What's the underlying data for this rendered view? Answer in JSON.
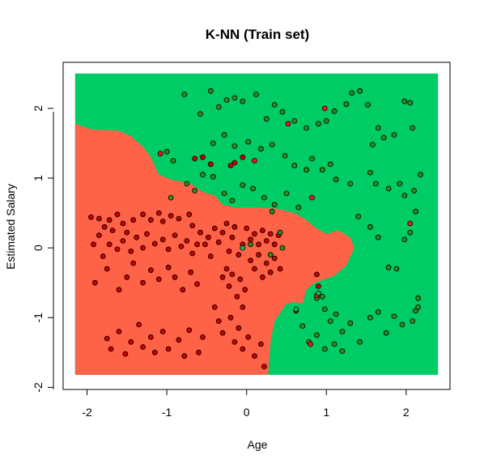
{
  "chart_data": {
    "type": "scatter",
    "title": "K-NN (Train set)",
    "xlabel": "Age",
    "ylabel": "Estimated Salary",
    "xlim": [
      -2.3,
      2.55
    ],
    "ylim": [
      -2.03,
      2.66
    ],
    "x_ticks": [
      "-2",
      "-1",
      "0",
      "1",
      "2"
    ],
    "y_ticks": [
      "-2",
      "-1",
      "0",
      "1",
      "2"
    ],
    "region_grid": {
      "xrange": [
        -2.15,
        2.4
      ],
      "yrange": [
        -1.82,
        2.5
      ]
    },
    "colors": {
      "region_0": "#FF6347",
      "region_1": "#00CC66",
      "point_0": "#CC0000",
      "point_1": "#2E8B1E",
      "point_0_alt": "#FF1020",
      "point_1_alt": "#00C050",
      "outline": "#000000"
    },
    "region_red": [
      [
        -2.15,
        -1.82
      ],
      [
        -2.15,
        1.78
      ],
      [
        -1.95,
        1.7
      ],
      [
        -1.6,
        1.68
      ],
      [
        -1.45,
        1.6
      ],
      [
        -1.3,
        1.45
      ],
      [
        -1.2,
        1.3
      ],
      [
        -1.1,
        1.05
      ],
      [
        -0.95,
        0.98
      ],
      [
        -0.7,
        0.92
      ],
      [
        -0.55,
        0.8
      ],
      [
        -0.4,
        0.75
      ],
      [
        -0.3,
        0.62
      ],
      [
        -0.15,
        0.58
      ],
      [
        0.1,
        0.58
      ],
      [
        0.4,
        0.56
      ],
      [
        0.6,
        0.5
      ],
      [
        0.75,
        0.4
      ],
      [
        0.85,
        0.3
      ],
      [
        1.0,
        0.2
      ],
      [
        1.15,
        0.25
      ],
      [
        1.3,
        0.15
      ],
      [
        1.35,
        0.0
      ],
      [
        1.25,
        -0.25
      ],
      [
        1.1,
        -0.4
      ],
      [
        0.85,
        -0.5
      ],
      [
        0.75,
        -0.6
      ],
      [
        0.7,
        -0.8
      ],
      [
        0.6,
        -0.78
      ],
      [
        0.5,
        -0.8
      ],
      [
        0.35,
        -1.05
      ],
      [
        0.3,
        -1.35
      ],
      [
        0.27,
        -1.82
      ]
    ],
    "points_class0": [
      [
        -1.95,
        0.44
      ],
      [
        -1.85,
        0.42
      ],
      [
        -1.78,
        0.3
      ],
      [
        -1.72,
        0.4
      ],
      [
        -1.68,
        0.25
      ],
      [
        -1.62,
        0.48
      ],
      [
        -1.55,
        0.35
      ],
      [
        -1.5,
        0.22
      ],
      [
        -1.42,
        0.4
      ],
      [
        -1.3,
        0.48
      ],
      [
        -1.2,
        0.4
      ],
      [
        -1.1,
        0.5
      ],
      [
        -1.05,
        0.38
      ],
      [
        -0.95,
        0.46
      ],
      [
        -0.85,
        0.42
      ],
      [
        -0.72,
        0.48
      ],
      [
        -0.68,
        0.32
      ],
      [
        -1.92,
        0.05
      ],
      [
        -1.85,
        0.18
      ],
      [
        -1.8,
        -0.12
      ],
      [
        -1.72,
        0.05
      ],
      [
        -1.62,
        -0.02
      ],
      [
        -1.55,
        0.1
      ],
      [
        -1.45,
        -0.05
      ],
      [
        -1.38,
        0.15
      ],
      [
        -1.3,
        0.0
      ],
      [
        -1.25,
        0.2
      ],
      [
        -1.15,
        0.06
      ],
      [
        -1.05,
        0.12
      ],
      [
        -0.98,
        -0.02
      ],
      [
        -0.9,
        0.18
      ],
      [
        -0.82,
        0.02
      ],
      [
        -0.75,
        0.1
      ],
      [
        -0.68,
        -0.08
      ],
      [
        -0.62,
        0.05
      ],
      [
        -1.9,
        -0.5
      ],
      [
        -1.75,
        -0.3
      ],
      [
        -1.6,
        -0.6
      ],
      [
        -1.5,
        -0.42
      ],
      [
        -1.42,
        -0.22
      ],
      [
        -1.3,
        -0.5
      ],
      [
        -1.2,
        -0.32
      ],
      [
        -1.1,
        -0.45
      ],
      [
        -0.98,
        -0.28
      ],
      [
        -0.9,
        -0.42
      ],
      [
        -0.8,
        -0.6
      ],
      [
        -0.7,
        -0.35
      ],
      [
        -0.62,
        -0.52
      ],
      [
        -1.75,
        -1.3
      ],
      [
        -1.7,
        -1.45
      ],
      [
        -1.6,
        -1.2
      ],
      [
        -1.52,
        -1.52
      ],
      [
        -1.45,
        -1.35
      ],
      [
        -1.35,
        -1.1
      ],
      [
        -1.3,
        -1.42
      ],
      [
        -1.2,
        -1.28
      ],
      [
        -1.15,
        -1.5
      ],
      [
        -1.05,
        -1.2
      ],
      [
        -0.98,
        -1.45
      ],
      [
        -0.85,
        -1.32
      ],
      [
        -0.78,
        -1.55
      ],
      [
        -0.72,
        -1.18
      ],
      [
        -0.6,
        -1.5
      ],
      [
        -0.55,
        -1.28
      ],
      [
        -0.58,
        0.22
      ],
      [
        -0.52,
        0.05
      ],
      [
        -0.48,
        0.15
      ],
      [
        -0.45,
        -0.12
      ],
      [
        -0.4,
        0.28
      ],
      [
        -0.35,
        0.08
      ],
      [
        -0.3,
        0.22
      ],
      [
        -0.25,
        0.35
      ],
      [
        -0.22,
        -0.05
      ],
      [
        -0.18,
        0.15
      ],
      [
        -0.15,
        0.3
      ],
      [
        -0.1,
        -0.1
      ],
      [
        -0.05,
        0.05
      ],
      [
        -0.3,
        -0.42
      ],
      [
        -0.25,
        -0.3
      ],
      [
        -0.22,
        -0.55
      ],
      [
        -0.18,
        -0.38
      ],
      [
        -0.12,
        -0.7
      ],
      [
        -0.08,
        -0.45
      ],
      [
        -0.05,
        -0.85
      ],
      [
        -0.02,
        -0.6
      ],
      [
        -0.4,
        -0.85
      ],
      [
        -0.35,
        -1.05
      ],
      [
        -0.3,
        -1.22
      ],
      [
        -0.2,
        -1.0
      ],
      [
        -0.15,
        -1.35
      ],
      [
        -0.1,
        -1.15
      ],
      [
        -0.05,
        -1.45
      ],
      [
        0.02,
        -1.28
      ],
      [
        0.1,
        -1.55
      ],
      [
        0.18,
        -1.38
      ],
      [
        0.22,
        -1.7
      ],
      [
        0.0,
        0.28
      ],
      [
        0.05,
        0.12
      ],
      [
        0.1,
        0.2
      ],
      [
        0.15,
        0.05
      ],
      [
        0.2,
        0.25
      ],
      [
        0.25,
        0.1
      ],
      [
        0.3,
        0.2
      ],
      [
        0.35,
        0.05
      ],
      [
        0.4,
        0.18
      ],
      [
        0.05,
        -0.18
      ],
      [
        0.1,
        -0.3
      ],
      [
        0.15,
        -0.1
      ],
      [
        0.2,
        -0.42
      ],
      [
        0.25,
        -0.22
      ],
      [
        0.3,
        -0.35
      ],
      [
        0.35,
        -0.15
      ],
      [
        0.42,
        -0.3
      ],
      [
        -0.65,
        1.28
      ],
      [
        -0.55,
        1.3
      ],
      [
        -0.45,
        1.2
      ],
      [
        -0.2,
        1.18
      ],
      [
        -0.15,
        1.22
      ],
      [
        -0.05,
        1.3
      ],
      [
        0.88,
        -0.38
      ],
      [
        0.9,
        -0.55
      ],
      [
        0.62,
        -0.9
      ]
    ],
    "points_class1": [
      [
        -0.78,
        2.2
      ],
      [
        -0.58,
        1.92
      ],
      [
        -0.45,
        2.25
      ],
      [
        -0.35,
        2.02
      ],
      [
        -0.25,
        2.12
      ],
      [
        -0.15,
        2.15
      ],
      [
        -0.05,
        2.1
      ],
      [
        0.12,
        2.2
      ],
      [
        0.25,
        1.85
      ],
      [
        0.35,
        2.05
      ],
      [
        0.45,
        1.95
      ],
      [
        0.6,
        1.82
      ],
      [
        0.75,
        1.72
      ],
      [
        0.9,
        1.78
      ],
      [
        1.0,
        1.82
      ],
      [
        1.1,
        1.96
      ],
      [
        1.25,
        2.06
      ],
      [
        1.32,
        2.22
      ],
      [
        1.42,
        2.25
      ],
      [
        1.52,
        2.05
      ],
      [
        1.58,
        1.48
      ],
      [
        1.65,
        1.72
      ],
      [
        1.72,
        1.58
      ],
      [
        1.85,
        1.62
      ],
      [
        1.98,
        2.1
      ],
      [
        2.05,
        2.08
      ],
      [
        2.08,
        1.72
      ],
      [
        -0.42,
        1.5
      ],
      [
        -0.28,
        1.62
      ],
      [
        -0.15,
        1.46
      ],
      [
        0.02,
        1.52
      ],
      [
        0.18,
        1.42
      ],
      [
        0.32,
        1.48
      ],
      [
        0.48,
        1.32
      ],
      [
        0.6,
        1.18
      ],
      [
        0.75,
        1.12
      ],
      [
        0.82,
        1.28
      ],
      [
        0.95,
        1.12
      ],
      [
        1.05,
        1.2
      ],
      [
        1.12,
        0.98
      ],
      [
        1.3,
        0.92
      ],
      [
        1.55,
        1.08
      ],
      [
        1.62,
        0.92
      ],
      [
        1.78,
        0.85
      ],
      [
        1.92,
        0.92
      ],
      [
        1.98,
        0.75
      ],
      [
        2.1,
        0.82
      ],
      [
        2.18,
        1.05
      ],
      [
        -0.95,
        0.72
      ],
      [
        -0.75,
        0.92
      ],
      [
        -0.65,
        0.82
      ],
      [
        -0.55,
        1.05
      ],
      [
        -0.42,
        1.02
      ],
      [
        -0.28,
        0.78
      ],
      [
        -0.18,
        0.68
      ],
      [
        -0.05,
        0.9
      ],
      [
        0.08,
        0.85
      ],
      [
        0.22,
        0.72
      ],
      [
        0.35,
        0.62
      ],
      [
        0.5,
        0.78
      ],
      [
        0.65,
        0.58
      ],
      [
        1.4,
        0.45
      ],
      [
        1.55,
        0.3
      ],
      [
        1.65,
        0.15
      ],
      [
        1.78,
        -0.28
      ],
      [
        1.88,
        -0.3
      ],
      [
        1.98,
        0.12
      ],
      [
        2.05,
        0.22
      ],
      [
        2.12,
        0.52
      ],
      [
        2.15,
        -0.72
      ],
      [
        2.12,
        -0.9
      ],
      [
        0.98,
        -0.88
      ],
      [
        1.05,
        -1.05
      ],
      [
        1.12,
        -0.95
      ],
      [
        1.2,
        -1.2
      ],
      [
        1.3,
        -1.08
      ],
      [
        1.42,
        -1.35
      ],
      [
        1.55,
        -1.0
      ],
      [
        1.65,
        -0.92
      ],
      [
        1.75,
        -1.22
      ],
      [
        1.85,
        -0.98
      ],
      [
        1.95,
        -1.1
      ],
      [
        2.08,
        -1.05
      ],
      [
        2.15,
        -0.85
      ],
      [
        0.7,
        -1.12
      ],
      [
        0.78,
        -1.35
      ],
      [
        0.88,
        -1.25
      ],
      [
        0.98,
        -1.45
      ],
      [
        1.1,
        -1.38
      ],
      [
        1.2,
        -1.48
      ],
      [
        -1.0,
        1.38
      ],
      [
        -0.92,
        1.25
      ],
      [
        0.95,
        -0.7
      ],
      [
        0.05,
        0.05
      ],
      [
        0.3,
        -0.1
      ],
      [
        0.45,
        0.0
      ],
      [
        0.42,
        0.22
      ],
      [
        0.32,
        0.52
      ],
      [
        0.88,
        -0.72
      ]
    ],
    "points_class0_alt": [
      [
        -1.08,
        1.35
      ],
      [
        0.52,
        1.78
      ],
      [
        0.98,
        2.0
      ],
      [
        0.82,
        0.72
      ],
      [
        2.05,
        0.35
      ],
      [
        0.8,
        -1.38
      ],
      [
        0.88,
        -0.68
      ],
      [
        0.1,
        1.25
      ]
    ],
    "points_class1_alt": [
      [
        -0.05,
        0.0
      ],
      [
        0.9,
        -0.65
      ],
      [
        0.62,
        -0.88
      ]
    ],
    "notes_none": ""
  }
}
